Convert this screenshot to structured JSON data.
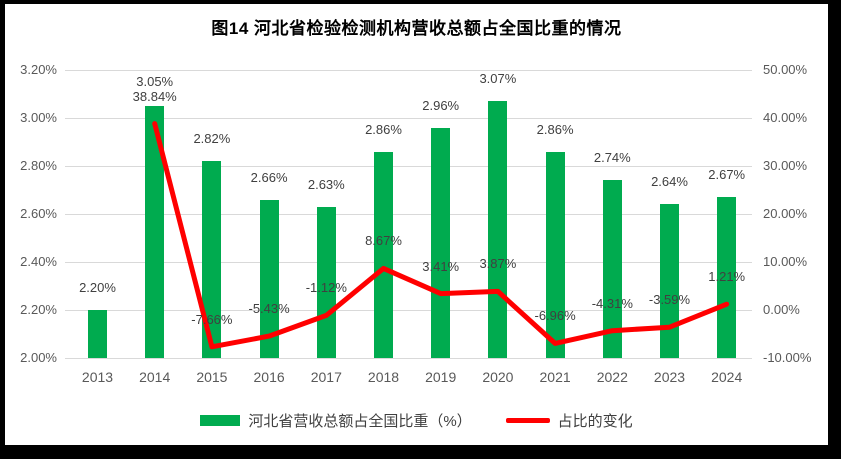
{
  "chart_data": {
    "type": "combo",
    "title": "图14 河北省检验检测机构营收总额占全国比重的情况",
    "categories": [
      "2013",
      "2014",
      "2015",
      "2016",
      "2017",
      "2018",
      "2019",
      "2020",
      "2021",
      "2022",
      "2023",
      "2024"
    ],
    "series": [
      {
        "name": "河北省营收总额占全国比重（%）",
        "type": "bar",
        "axis": "left",
        "color": "#00AB4F",
        "values": [
          2.2,
          3.05,
          2.82,
          2.66,
          2.63,
          2.86,
          2.96,
          3.07,
          2.86,
          2.74,
          2.64,
          2.67
        ],
        "labels": [
          "2.20%",
          "3.05%",
          "2.82%",
          "2.66%",
          "2.63%",
          "2.86%",
          "2.96%",
          "3.07%",
          "2.86%",
          "2.74%",
          "2.64%",
          "2.67%"
        ]
      },
      {
        "name": "占比的变化",
        "type": "line",
        "axis": "right",
        "color": "#FF0000",
        "values": [
          null,
          38.84,
          -7.66,
          -5.43,
          -1.12,
          8.67,
          3.41,
          3.87,
          -6.96,
          -4.31,
          -3.59,
          1.21
        ],
        "labels": [
          null,
          "38.84%",
          "-7.66%",
          "-5.43%",
          "-1.12%",
          "8.67%",
          "3.41%",
          "3.87%",
          "-6.96%",
          "-4.31%",
          "-3.59%",
          "1.21%"
        ]
      }
    ],
    "left_axis": {
      "min": 2.0,
      "max": 3.2,
      "tick_labels": [
        "3.20%",
        "3.00%",
        "2.80%",
        "2.60%",
        "2.40%",
        "2.20%",
        "2.00%"
      ]
    },
    "right_axis": {
      "min": -10,
      "max": 50,
      "tick_labels": [
        "50.00%",
        "40.00%",
        "30.00%",
        "20.00%",
        "10.00%",
        "0.00%",
        "-10.00%"
      ]
    },
    "gridlines": true,
    "legend_position": "bottom",
    "colors": {
      "bar": "#00AB4F",
      "line": "#FF0000",
      "grid": "#D9D9D9",
      "axis_text": "#595959",
      "label_text": "#404040",
      "title_text": "#000000",
      "frame": "#000000",
      "background": "#FFFFFF"
    }
  }
}
